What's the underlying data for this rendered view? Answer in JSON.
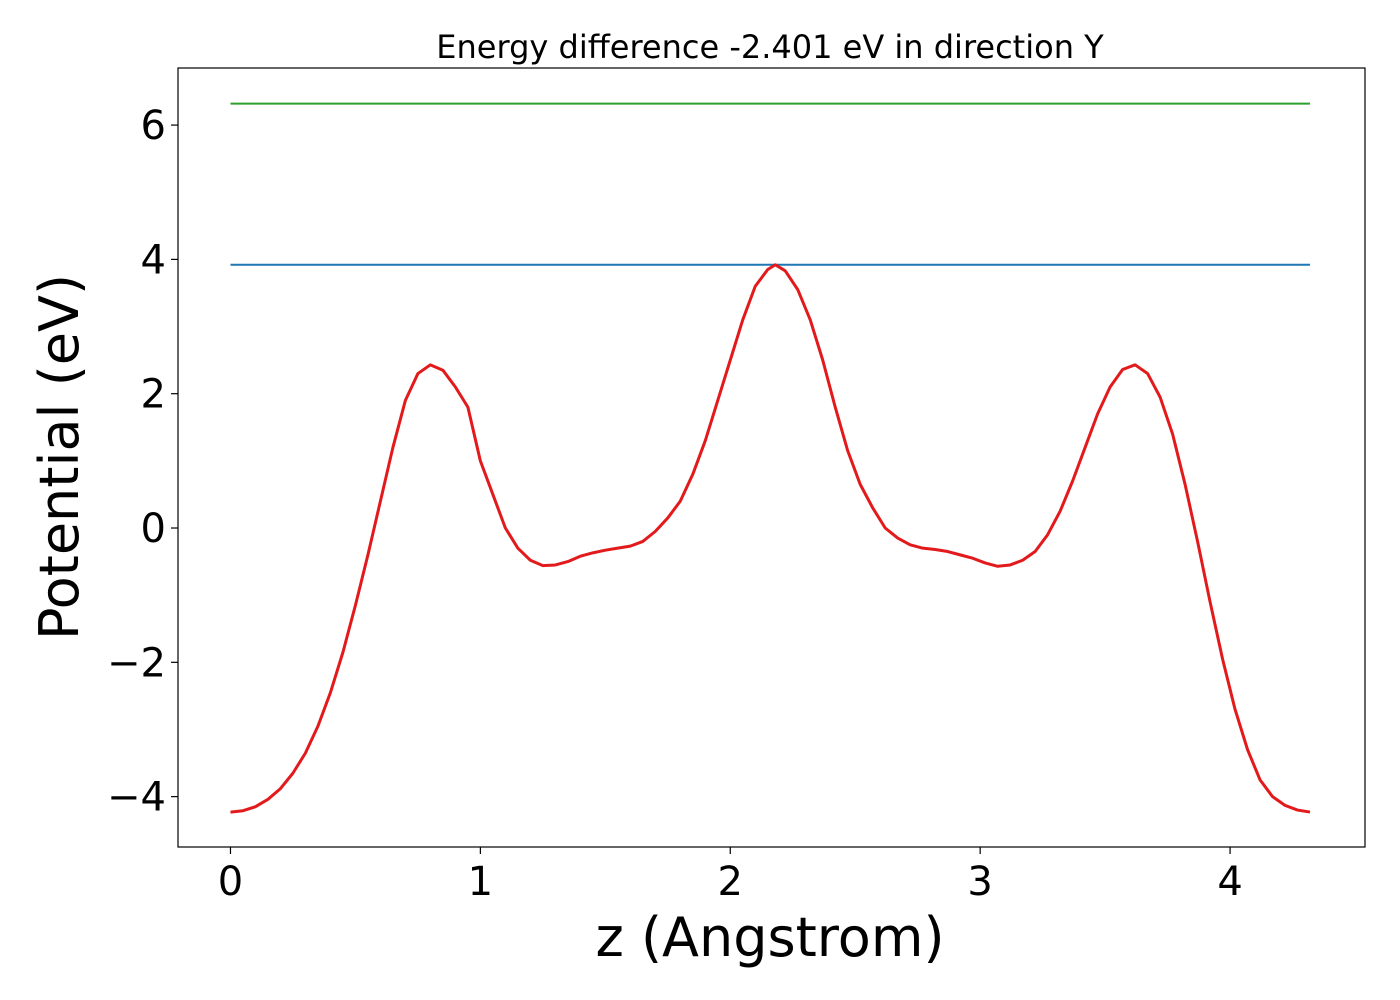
{
  "chart_data": {
    "type": "line",
    "title": "Energy difference -2.401 eV in direction Y",
    "xlabel": "z (Angstrom)",
    "ylabel": "Potential (eV)",
    "xlim": [
      -0.21,
      4.54
    ],
    "ylim": [
      -4.75,
      6.85
    ],
    "x_ticks": [
      0,
      1,
      2,
      3,
      4
    ],
    "y_ticks": [
      -4,
      -2,
      0,
      2,
      4,
      6
    ],
    "x_tick_labels": [
      "0",
      "1",
      "2",
      "3",
      "4"
    ],
    "y_tick_labels": [
      "−4",
      "−2",
      "0",
      "2",
      "4",
      "6"
    ],
    "grid": false,
    "legend": "none",
    "series": [
      {
        "color": "#2ca02c",
        "x": [
          0.0,
          4.32
        ],
        "y": [
          6.32,
          6.32
        ]
      },
      {
        "color": "#1f77b4",
        "x": [
          0.0,
          4.32
        ],
        "y": [
          3.92,
          3.92
        ]
      },
      {
        "color": "#e31a1c",
        "x": [
          0.0,
          0.05,
          0.1,
          0.15,
          0.2,
          0.25,
          0.3,
          0.35,
          0.4,
          0.45,
          0.5,
          0.55,
          0.6,
          0.65,
          0.7,
          0.75,
          0.8,
          0.85,
          0.9,
          0.95,
          1.0,
          1.05,
          1.1,
          1.15,
          1.2,
          1.25,
          1.3,
          1.35,
          1.4,
          1.45,
          1.5,
          1.55,
          1.6,
          1.65,
          1.7,
          1.75,
          1.8,
          1.85,
          1.9,
          1.95,
          2.0,
          2.05,
          2.1,
          2.15,
          2.18,
          2.22,
          2.27,
          2.32,
          2.37,
          2.42,
          2.47,
          2.52,
          2.57,
          2.62,
          2.67,
          2.72,
          2.77,
          2.82,
          2.87,
          2.92,
          2.97,
          3.02,
          3.07,
          3.12,
          3.17,
          3.22,
          3.27,
          3.32,
          3.37,
          3.42,
          3.47,
          3.52,
          3.57,
          3.62,
          3.67,
          3.72,
          3.77,
          3.82,
          3.87,
          3.92,
          3.97,
          4.02,
          4.07,
          4.12,
          4.17,
          4.22,
          4.27,
          4.32
        ],
        "y": [
          -4.23,
          -4.21,
          -4.15,
          -4.04,
          -3.88,
          -3.65,
          -3.35,
          -2.95,
          -2.45,
          -1.85,
          -1.15,
          -0.4,
          0.4,
          1.2,
          1.9,
          2.3,
          2.43,
          2.35,
          2.1,
          1.8,
          1.0,
          0.5,
          0.0,
          -0.3,
          -0.48,
          -0.56,
          -0.55,
          -0.5,
          -0.42,
          -0.37,
          -0.33,
          -0.3,
          -0.27,
          -0.2,
          -0.05,
          0.15,
          0.4,
          0.8,
          1.3,
          1.9,
          2.5,
          3.1,
          3.6,
          3.85,
          3.92,
          3.83,
          3.55,
          3.1,
          2.5,
          1.8,
          1.15,
          0.65,
          0.3,
          0.0,
          -0.15,
          -0.25,
          -0.3,
          -0.32,
          -0.35,
          -0.4,
          -0.45,
          -0.52,
          -0.57,
          -0.55,
          -0.48,
          -0.35,
          -0.1,
          0.25,
          0.7,
          1.2,
          1.7,
          2.1,
          2.36,
          2.43,
          2.3,
          1.95,
          1.4,
          0.65,
          -0.2,
          -1.1,
          -1.95,
          -2.7,
          -3.3,
          -3.75,
          -4.0,
          -4.13,
          -4.2,
          -4.23
        ]
      }
    ]
  }
}
